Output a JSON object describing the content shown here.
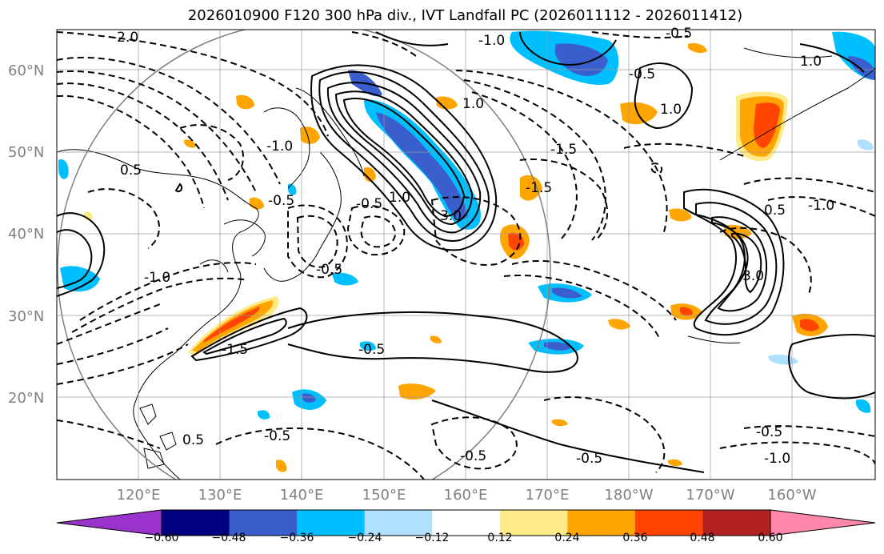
{
  "title": "2026010900 F120 300 hPa div., IVT Landfall PC (2026011112 - 2026011412)",
  "map": {
    "lat_labels": [
      "60°N",
      "50°N",
      "40°N",
      "30°N",
      "20°N"
    ],
    "lon_labels": [
      "120°E",
      "130°E",
      "140°E",
      "150°E",
      "160°E",
      "170°E",
      "180°W",
      "170°W",
      "160°W"
    ]
  },
  "colorbar": {
    "tick_labels": [
      "−0.60",
      "−0.48",
      "−0.36",
      "−0.24",
      "−0.12",
      "0.12",
      "0.24",
      "0.36",
      "0.48",
      "0.60"
    ],
    "colors": [
      "#9933cc",
      "#000080",
      "#3a5fcd",
      "#00bfff",
      "#b0e0ff",
      "#ffffff",
      "#ffea8a",
      "#ffa500",
      "#ff4500",
      "#b22222",
      "#ff88aa"
    ]
  },
  "contour_labels": [
    "-2.0",
    "-1.0",
    "-0.5",
    "-0.5",
    "-1.0",
    "-0.5",
    "-0.5",
    "-1.0",
    "-0.5",
    "1.0",
    "0.5",
    "3.0",
    "1.0",
    "-1.5",
    "-0.5",
    "-0.5",
    "1.0",
    "-1.0",
    "-0.5",
    "3.0",
    "-1.5",
    "-1.0",
    "-0.5",
    "1.0",
    "0.5",
    "-0.5",
    "-1.5",
    "0.5"
  ]
}
